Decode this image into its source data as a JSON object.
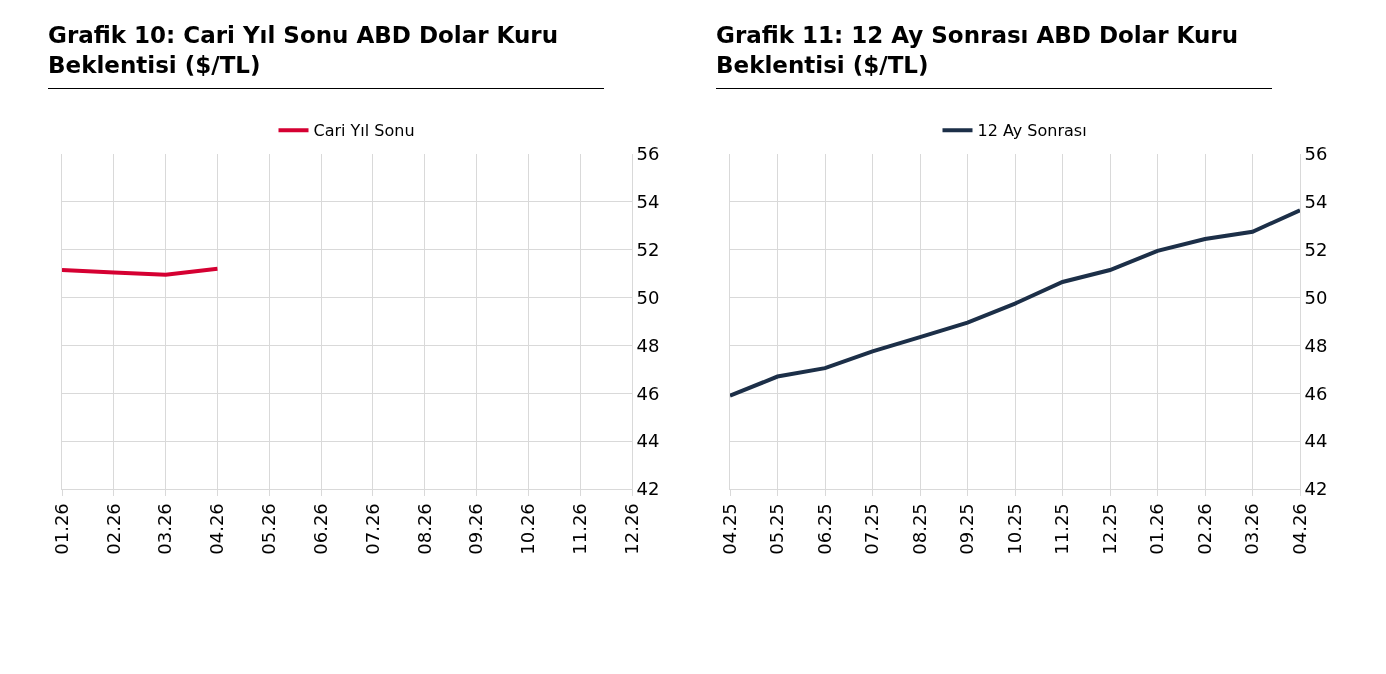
{
  "chart_data": [
    {
      "type": "line",
      "title": "Grafik 10: Cari Yıl Sonu ABD Dolar Kuru Beklentisi ($/TL)",
      "categories": [
        "01.26",
        "02.26",
        "03.26",
        "04.26",
        "05.26",
        "06.26",
        "07.26",
        "08.26",
        "09.26",
        "10.26",
        "11.26",
        "12.26"
      ],
      "series": [
        {
          "name": "Cari Yıl Sonu",
          "color": "#d50032",
          "values": [
            51.15,
            51.05,
            50.95,
            51.2,
            null,
            null,
            null,
            null,
            null,
            null,
            null,
            null
          ]
        }
      ],
      "ylim": [
        42,
        56
      ],
      "yticks": [
        42,
        44,
        46,
        48,
        50,
        52,
        54,
        56
      ],
      "grid": true,
      "legend": "top",
      "marker": "none",
      "line_style": "solid"
    },
    {
      "type": "line",
      "title": "Grafik 11: 12 Ay Sonrası ABD Dolar Kuru Beklentisi ($/TL)",
      "categories": [
        "04.25",
        "05.25",
        "06.25",
        "07.25",
        "08.25",
        "09.25",
        "10.25",
        "11.25",
        "12.25",
        "01.26",
        "02.26",
        "03.26",
        "04.26"
      ],
      "series": [
        {
          "name": "12 Ay Sonrası",
          "color": "#1c2f48",
          "values": [
            45.9,
            46.7,
            47.05,
            47.75,
            48.35,
            48.95,
            49.75,
            50.65,
            51.15,
            51.95,
            52.45,
            52.75,
            53.65
          ]
        }
      ],
      "ylim": [
        42,
        56
      ],
      "yticks": [
        42,
        44,
        46,
        48,
        50,
        52,
        54,
        56
      ],
      "grid": true,
      "legend": "top",
      "marker": "none",
      "line_style": "solid"
    }
  ]
}
